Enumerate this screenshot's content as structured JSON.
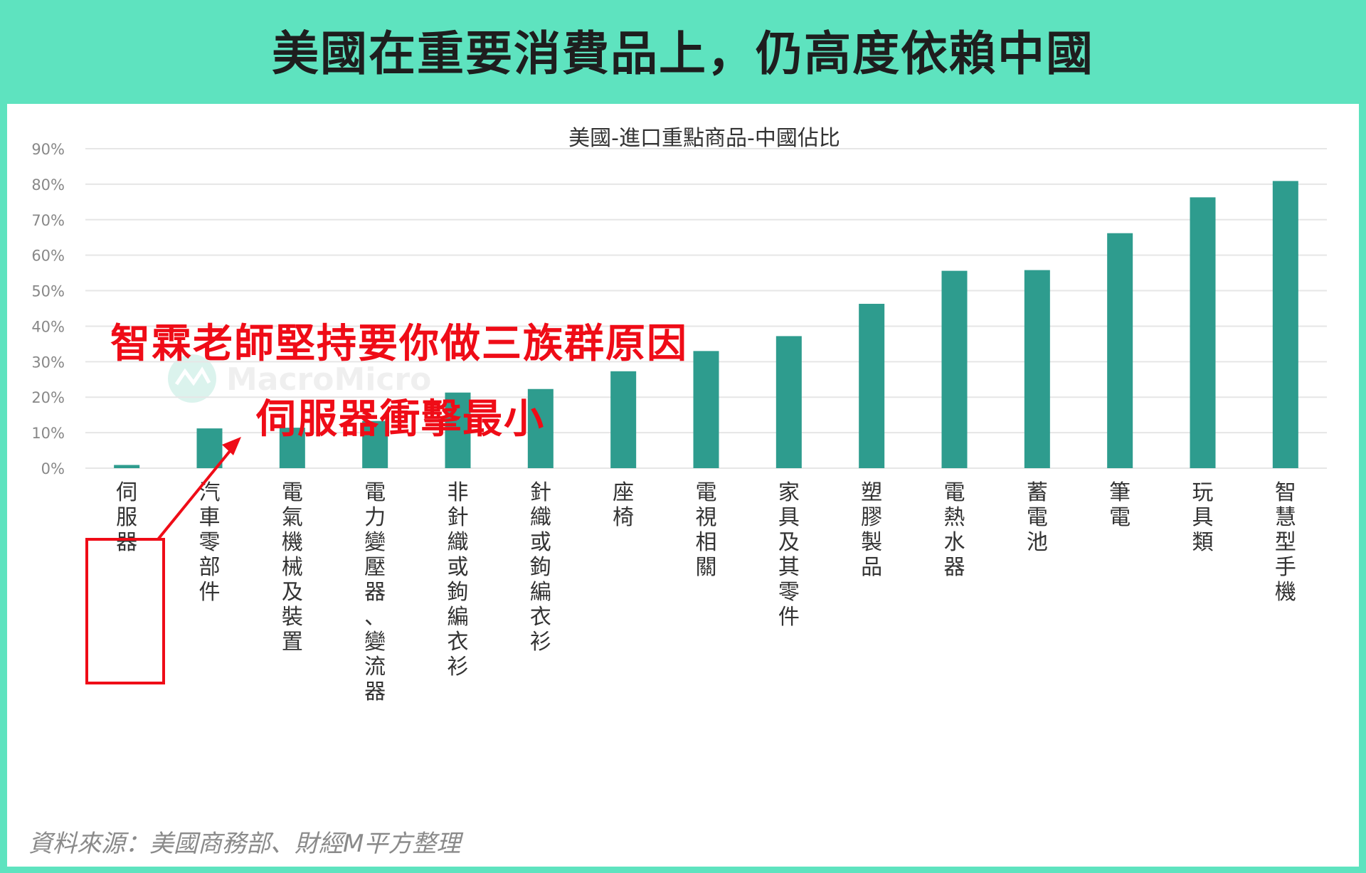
{
  "banner": {
    "title": "美國在重要消費品上，仍高度依賴中國"
  },
  "chart_data": {
    "type": "bar",
    "title": "美國-進口重點商品-中國佔比",
    "categories": [
      "伺服器",
      "汽車零部件",
      "電氣機械及裝置",
      "電力變壓器、變流器",
      "非針織或鉤編衣衫",
      "針織或鉤編衣衫",
      "座椅",
      "電視相關",
      "家具及其零件",
      "塑膠製品",
      "電熱水器",
      "蓄電池",
      "筆電",
      "玩具類",
      "智慧型手機"
    ],
    "values": [
      0.9,
      11.2,
      11.4,
      13.3,
      21.3,
      22.3,
      27.3,
      33.0,
      37.2,
      46.3,
      55.6,
      55.8,
      66.2,
      76.3,
      80.9
    ],
    "ylim": [
      0,
      90
    ],
    "yticks": [
      0,
      10,
      20,
      30,
      40,
      50,
      60,
      70,
      80,
      90
    ],
    "ytick_labels": [
      "0%",
      "10%",
      "20%",
      "30%",
      "40%",
      "50%",
      "60%",
      "70%",
      "80%",
      "90%"
    ],
    "grid": true,
    "bar_color": "#2e9c8e",
    "grid_color": "#e6e6e6"
  },
  "watermark": "MacroMicro",
  "annotation": {
    "line1": "智霖老師堅持要你做三族群原因",
    "line2": "伺服器衝擊最小",
    "color": "#ef0c17"
  },
  "source": "資料來源：美國商務部、財經M平方整理"
}
